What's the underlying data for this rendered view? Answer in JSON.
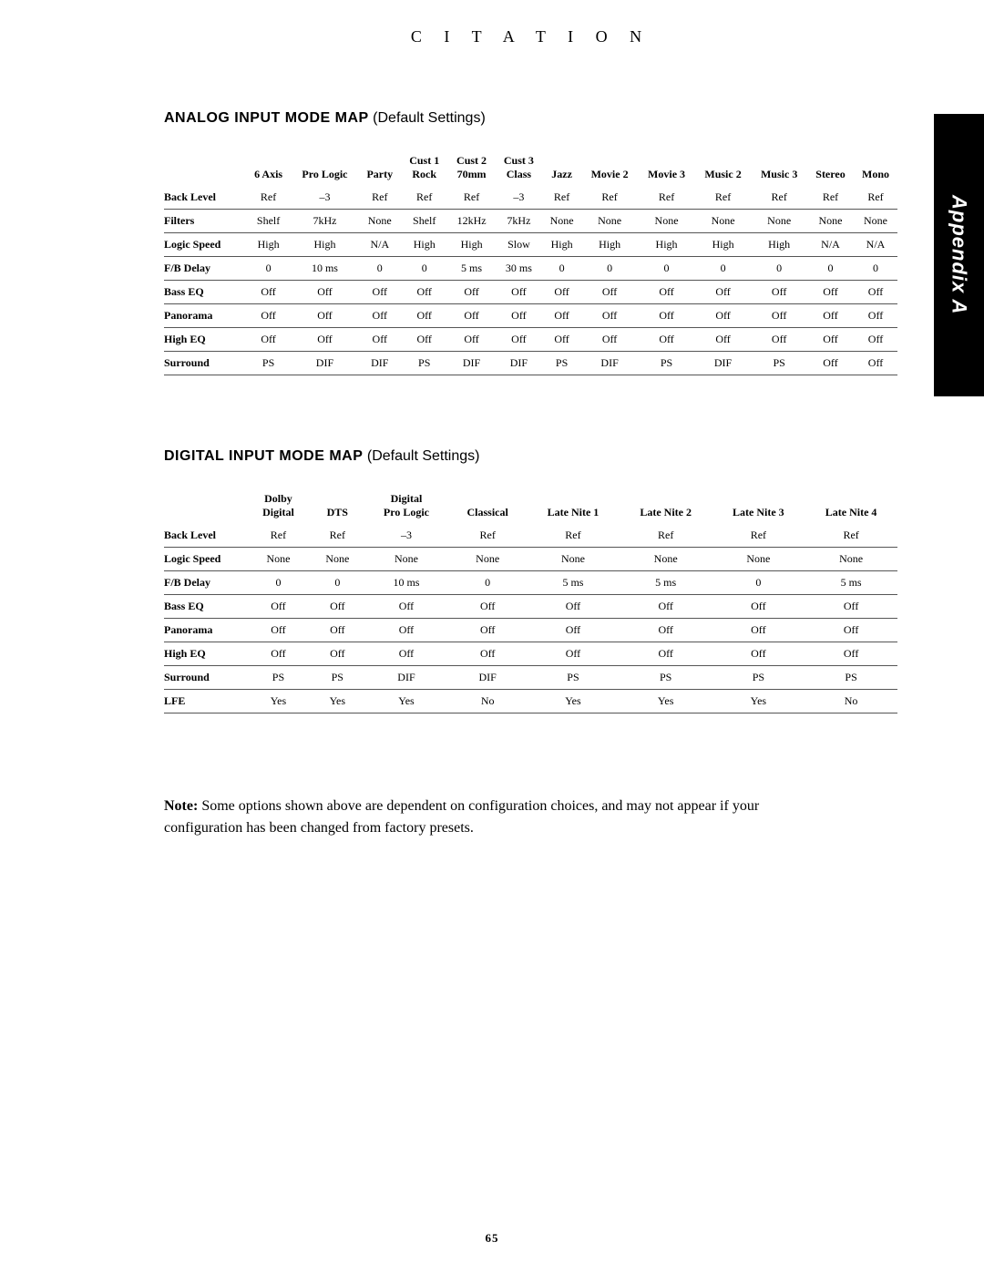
{
  "brand": "C I T A T I O N",
  "side_tab": "Appendix A",
  "page_number": "65",
  "analog": {
    "title_bold": "ANALOG INPUT MODE MAP",
    "title_light": "(Default Settings)",
    "columns": [
      "",
      "6 Axis",
      "Pro Logic",
      "Party",
      "Cust 1\nRock",
      "Cust 2\n70mm",
      "Cust 3\nClass",
      "Jazz",
      "Movie 2",
      "Movie 3",
      "Music 2",
      "Music 3",
      "Stereo",
      "Mono"
    ],
    "rows": [
      [
        "Back Level",
        "Ref",
        "–3",
        "Ref",
        "Ref",
        "Ref",
        "–3",
        "Ref",
        "Ref",
        "Ref",
        "Ref",
        "Ref",
        "Ref",
        "Ref"
      ],
      [
        "Filters",
        "Shelf",
        "7kHz",
        "None",
        "Shelf",
        "12kHz",
        "7kHz",
        "None",
        "None",
        "None",
        "None",
        "None",
        "None",
        "None"
      ],
      [
        "Logic Speed",
        "High",
        "High",
        "N/A",
        "High",
        "High",
        "Slow",
        "High",
        "High",
        "High",
        "High",
        "High",
        "N/A",
        "N/A"
      ],
      [
        "F/B Delay",
        "0",
        "10 ms",
        "0",
        "0",
        "5 ms",
        "30 ms",
        "0",
        "0",
        "0",
        "0",
        "0",
        "0",
        "0"
      ],
      [
        "Bass EQ",
        "Off",
        "Off",
        "Off",
        "Off",
        "Off",
        "Off",
        "Off",
        "Off",
        "Off",
        "Off",
        "Off",
        "Off",
        "Off"
      ],
      [
        "Panorama",
        "Off",
        "Off",
        "Off",
        "Off",
        "Off",
        "Off",
        "Off",
        "Off",
        "Off",
        "Off",
        "Off",
        "Off",
        "Off"
      ],
      [
        "High EQ",
        "Off",
        "Off",
        "Off",
        "Off",
        "Off",
        "Off",
        "Off",
        "Off",
        "Off",
        "Off",
        "Off",
        "Off",
        "Off"
      ],
      [
        "Surround",
        "PS",
        "DIF",
        "DIF",
        "PS",
        "DIF",
        "DIF",
        "PS",
        "DIF",
        "PS",
        "DIF",
        "PS",
        "Off",
        "Off"
      ]
    ]
  },
  "digital": {
    "title_bold": "DIGITAL INPUT MODE MAP",
    "title_light": "(Default Settings)",
    "columns": [
      "",
      "Dolby\nDigital",
      "DTS",
      "Digital\nPro Logic",
      "Classical",
      "Late Nite 1",
      "Late Nite 2",
      "Late Nite 3",
      "Late Nite 4"
    ],
    "rows": [
      [
        "Back Level",
        "Ref",
        "Ref",
        "–3",
        "Ref",
        "Ref",
        "Ref",
        "Ref",
        "Ref"
      ],
      [
        "Logic Speed",
        "None",
        "None",
        "None",
        "None",
        "None",
        "None",
        "None",
        "None"
      ],
      [
        "F/B Delay",
        "0",
        "0",
        "10 ms",
        "0",
        "5 ms",
        "5 ms",
        "0",
        "5 ms"
      ],
      [
        "Bass EQ",
        "Off",
        "Off",
        "Off",
        "Off",
        "Off",
        "Off",
        "Off",
        "Off"
      ],
      [
        "Panorama",
        "Off",
        "Off",
        "Off",
        "Off",
        "Off",
        "Off",
        "Off",
        "Off"
      ],
      [
        "High EQ",
        "Off",
        "Off",
        "Off",
        "Off",
        "Off",
        "Off",
        "Off",
        "Off"
      ],
      [
        "Surround",
        "PS",
        "PS",
        "DIF",
        "DIF",
        "PS",
        "PS",
        "PS",
        "PS"
      ],
      [
        "LFE",
        "Yes",
        "Yes",
        "Yes",
        "No",
        "Yes",
        "Yes",
        "Yes",
        "No"
      ]
    ]
  },
  "note_label": "Note:",
  "note_text": "Some options shown above are dependent on configuration choices, and may not appear if your configuration has been changed from factory presets."
}
